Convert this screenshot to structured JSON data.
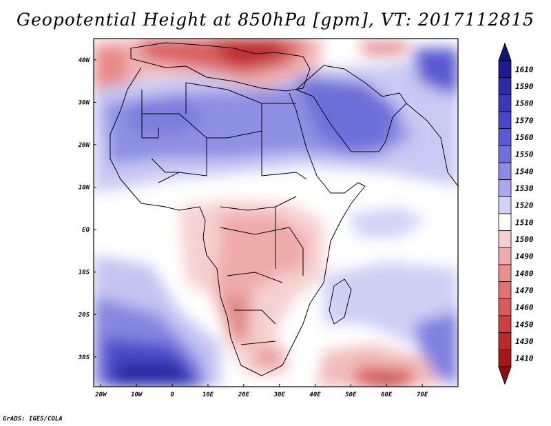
{
  "title": "Geopotential Height at 850hPa [gpm], VT: 2017112815",
  "credit": "GrADS: IGES/COLA",
  "map": {
    "field": "Geopotential Height",
    "level": "850hPa",
    "units": "gpm",
    "valid_time": "2017112815",
    "lon_range": [
      -22,
      80
    ],
    "lat_range": [
      -37,
      45
    ],
    "lon_ticks": [
      {
        "value": -20,
        "label": "20W"
      },
      {
        "value": -10,
        "label": "10W"
      },
      {
        "value": 0,
        "label": "0"
      },
      {
        "value": 10,
        "label": "10E"
      },
      {
        "value": 20,
        "label": "20E"
      },
      {
        "value": 30,
        "label": "30E"
      },
      {
        "value": 40,
        "label": "40E"
      },
      {
        "value": 50,
        "label": "50E"
      },
      {
        "value": 60,
        "label": "60E"
      },
      {
        "value": 70,
        "label": "70E"
      }
    ],
    "lat_ticks": [
      {
        "value": 40,
        "label": "40N"
      },
      {
        "value": 30,
        "label": "30N"
      },
      {
        "value": 20,
        "label": "20N"
      },
      {
        "value": 10,
        "label": "10N"
      },
      {
        "value": 0,
        "label": "EQ"
      },
      {
        "value": -10,
        "label": "10S"
      },
      {
        "value": -20,
        "label": "20S"
      },
      {
        "value": -30,
        "label": "30S"
      }
    ]
  },
  "colorbar": {
    "levels": [
      {
        "label": "1610",
        "color": "#1c1c8c"
      },
      {
        "label": "1590",
        "color": "#2b2ba6"
      },
      {
        "label": "1580",
        "color": "#3838b8"
      },
      {
        "label": "1570",
        "color": "#4848c8"
      },
      {
        "label": "1560",
        "color": "#5b5bd3"
      },
      {
        "label": "1550",
        "color": "#7070dc"
      },
      {
        "label": "1540",
        "color": "#8b8be4"
      },
      {
        "label": "1530",
        "color": "#a9a9ec"
      },
      {
        "label": "1520",
        "color": "#d2d2f6"
      },
      {
        "label": "1510",
        "color": "#ffffff"
      },
      {
        "label": "1500",
        "color": "#f6d0d0"
      },
      {
        "label": "1490",
        "color": "#efabab"
      },
      {
        "label": "1480",
        "color": "#e88f8f"
      },
      {
        "label": "1470",
        "color": "#e07474"
      },
      {
        "label": "1460",
        "color": "#d85b5b"
      },
      {
        "label": "1450",
        "color": "#cc4040"
      },
      {
        "label": "1430",
        "color": "#bb2a2a"
      },
      {
        "label": "1410",
        "color": "#a41818"
      }
    ],
    "top_triangle_color": "#141478",
    "bottom_triangle_color": "#8c1010"
  }
}
